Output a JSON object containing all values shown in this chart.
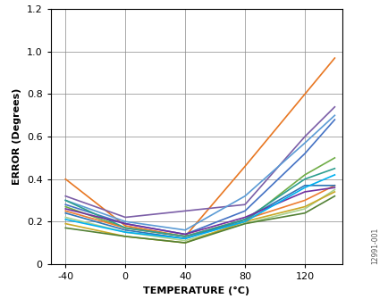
{
  "x_temps": [
    -40,
    0,
    40,
    80,
    120,
    140
  ],
  "xlim": [
    -50,
    145
  ],
  "ylim": [
    0,
    1.2
  ],
  "xticks": [
    -40,
    0,
    40,
    80,
    120
  ],
  "yticks": [
    0,
    0.2,
    0.4,
    0.6,
    0.8,
    1.0,
    1.2
  ],
  "xlabel": "TEMPERATURE (°C)",
  "ylabel": "ERROR (Degrees)",
  "lines": [
    {
      "color": "#E87722",
      "data": [
        0.4,
        0.18,
        0.13,
        0.46,
        0.8,
        0.97
      ]
    },
    {
      "color": "#7B5EA7",
      "data": [
        0.32,
        0.22,
        0.25,
        0.28,
        0.6,
        0.74
      ]
    },
    {
      "color": "#5B9BD5",
      "data": [
        0.3,
        0.2,
        0.16,
        0.32,
        0.57,
        0.7
      ]
    },
    {
      "color": "#4472C4",
      "data": [
        0.28,
        0.19,
        0.14,
        0.25,
        0.52,
        0.68
      ]
    },
    {
      "color": "#70AD47",
      "data": [
        0.27,
        0.17,
        0.13,
        0.2,
        0.42,
        0.5
      ]
    },
    {
      "color": "#ED7D31",
      "data": [
        0.25,
        0.17,
        0.13,
        0.21,
        0.3,
        0.37
      ]
    },
    {
      "color": "#2E75B6",
      "data": [
        0.24,
        0.16,
        0.12,
        0.21,
        0.37,
        0.37
      ]
    },
    {
      "color": "#A9D18E",
      "data": [
        0.22,
        0.15,
        0.11,
        0.19,
        0.26,
        0.35
      ]
    },
    {
      "color": "#2E9E8E",
      "data": [
        0.3,
        0.17,
        0.13,
        0.21,
        0.4,
        0.45
      ]
    },
    {
      "color": "#7030A0",
      "data": [
        0.26,
        0.19,
        0.14,
        0.22,
        0.34,
        0.36
      ]
    },
    {
      "color": "#C9A827",
      "data": [
        0.19,
        0.13,
        0.1,
        0.2,
        0.27,
        0.34
      ]
    },
    {
      "color": "#00B0F0",
      "data": [
        0.21,
        0.15,
        0.12,
        0.2,
        0.36,
        0.42
      ]
    },
    {
      "color": "#538135",
      "data": [
        0.17,
        0.13,
        0.1,
        0.19,
        0.24,
        0.32
      ]
    }
  ],
  "watermark": "12991-001",
  "linewidth": 1.2,
  "tick_fontsize": 8,
  "label_fontsize": 8
}
